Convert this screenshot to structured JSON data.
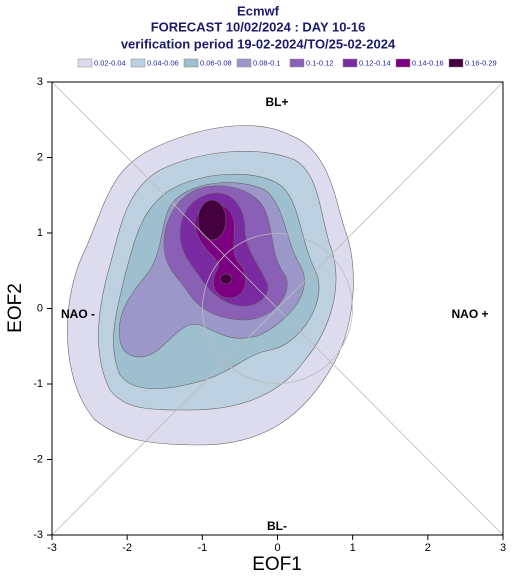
{
  "chart_data": {
    "type": "contour",
    "title": "Ecmwf",
    "subtitle": "FORECAST 10/02/2024 : DAY 10-16",
    "period": "verification period 19-02-2024/TO/25-02-2024",
    "x_label": "EOF1",
    "y_label": "EOF2",
    "xlim": [
      -3,
      3
    ],
    "ylim": [
      -3,
      3
    ],
    "xticks": [
      -3,
      -2,
      -1,
      0,
      1,
      2,
      3
    ],
    "yticks": [
      -3,
      -2,
      -1,
      0,
      1,
      2,
      3
    ],
    "annotations": [
      "BL+",
      "BL-",
      "NAO -",
      "NAO +"
    ],
    "levels": [
      {
        "label": "0.02-0.04",
        "color": "#dcdcee"
      },
      {
        "label": "0.04-0.06",
        "color": "#bcd0df"
      },
      {
        "label": "0.06-0.08",
        "color": "#9ebfcd"
      },
      {
        "label": "0.08-0.1",
        "color": "#9b98c9"
      },
      {
        "label": "0.1-0.12",
        "color": "#8a60b6"
      },
      {
        "label": "0.12-0.14",
        "color": "#7a2ba1"
      },
      {
        "label": "0.14-0.16",
        "color": "#7d0083"
      },
      {
        "label": "0.16-0.29",
        "color": "#44003f"
      }
    ]
  }
}
